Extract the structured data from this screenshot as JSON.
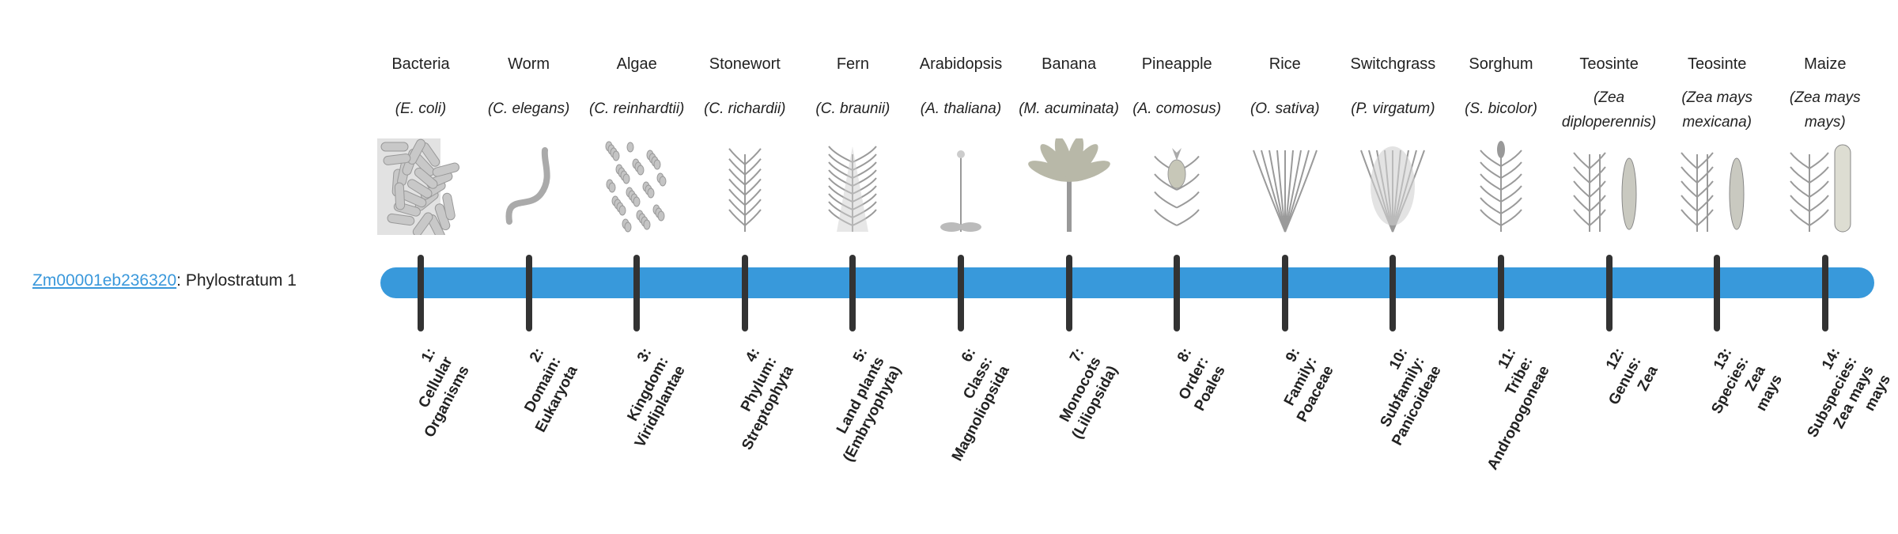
{
  "gene": {
    "id": "Zm00001eb236320",
    "suffix": ": Phylostratum 1"
  },
  "colors": {
    "bar": "#3899db",
    "tick": "#333333",
    "link": "#3a98db",
    "illustration": "#9a9a9a"
  },
  "organisms": [
    {
      "common": "Bacteria",
      "scientific": "(E. coli)",
      "icon": "bacteria-illustration",
      "stratum": [
        "1:",
        "Cellular",
        "Organisms"
      ]
    },
    {
      "common": "Worm",
      "scientific": "(C. elegans)",
      "icon": "worm-illustration",
      "stratum": [
        "2:",
        "Domain:",
        "Eukaryota"
      ]
    },
    {
      "common": "Algae",
      "scientific": "(C. reinhardtii)",
      "icon": "algae-illustration",
      "stratum": [
        "3:",
        "Kingdom:",
        "Viridiplantae"
      ]
    },
    {
      "common": "Stonewort",
      "scientific": "(C. richardii)",
      "icon": "stonewort-illustration",
      "stratum": [
        "4:",
        "Phylum:",
        "Streptophyta"
      ]
    },
    {
      "common": "Fern",
      "scientific": "(C. braunii)",
      "icon": "fern-illustration",
      "stratum": [
        "5:",
        "Land plants",
        "(Embryophyta)"
      ]
    },
    {
      "common": "Arabidopsis",
      "scientific": "(A. thaliana)",
      "icon": "arabidopsis-illustration",
      "stratum": [
        "6:",
        "Class:",
        "Magnoliopsida"
      ]
    },
    {
      "common": "Banana",
      "scientific": "(M. acuminata)",
      "icon": "banana-illustration",
      "stratum": [
        "7:",
        "Monocots",
        "(Liliopsida)"
      ]
    },
    {
      "common": "Pineapple",
      "scientific": "(A. comosus)",
      "icon": "pineapple-illustration",
      "stratum": [
        "8:",
        "Order:",
        "Poales"
      ]
    },
    {
      "common": "Rice",
      "scientific": "(O. sativa)",
      "icon": "rice-illustration",
      "stratum": [
        "9:",
        "Family:",
        "Poaceae"
      ]
    },
    {
      "common": "Switchgrass",
      "scientific": "(P. virgatum)",
      "icon": "switchgrass-illustration",
      "stratum": [
        "10:",
        "Subfamily:",
        "Panicoideae"
      ]
    },
    {
      "common": "Sorghum",
      "scientific": "(S. bicolor)",
      "icon": "sorghum-illustration",
      "stratum": [
        "11:",
        "Tribe:",
        "Andropogoneae"
      ]
    },
    {
      "common": "Teosinte",
      "scientific": "(Zea diploperennis)",
      "icon": "teosinte-illustration",
      "stratum": [
        "12:",
        "Genus:",
        "Zea"
      ]
    },
    {
      "common": "Teosinte",
      "scientific": "(Zea mays mexicana)",
      "icon": "teosinte-illustration",
      "stratum": [
        "13:",
        "Species:",
        "Zea",
        "mays"
      ]
    },
    {
      "common": "Maize",
      "scientific": "(Zea mays mays)",
      "icon": "maize-illustration",
      "stratum": [
        "14:",
        "Subspecies:",
        "Zea mays",
        "mays"
      ]
    }
  ]
}
